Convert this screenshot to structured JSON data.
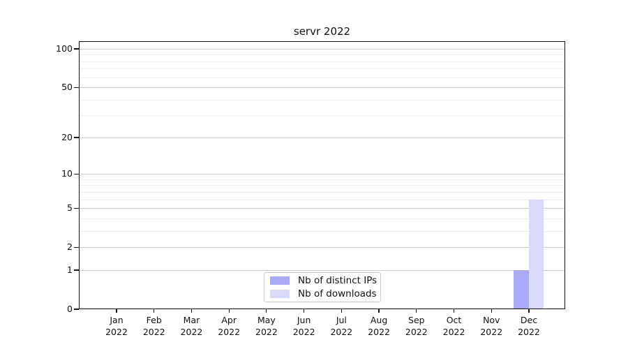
{
  "chart_data": {
    "type": "bar",
    "title": "servr 2022",
    "year": "2022",
    "months": [
      "Jan",
      "Feb",
      "Mar",
      "Apr",
      "May",
      "Jun",
      "Jul",
      "Aug",
      "Sep",
      "Oct",
      "Nov",
      "Dec"
    ],
    "categories": [
      "Jan 2022",
      "Feb 2022",
      "Mar 2022",
      "Apr 2022",
      "May 2022",
      "Jun 2022",
      "Jul 2022",
      "Aug 2022",
      "Sep 2022",
      "Oct 2022",
      "Nov 2022",
      "Dec 2022"
    ],
    "series": [
      {
        "name": "Nb of distinct IPs",
        "color": "#a9a9f8",
        "values": [
          0,
          0,
          0,
          0,
          0,
          0,
          0,
          0,
          0,
          0,
          0,
          1
        ]
      },
      {
        "name": "Nb of downloads",
        "color": "#d9d9fa",
        "values": [
          0,
          0,
          0,
          0,
          0,
          0,
          0,
          0,
          0,
          0,
          0,
          6
        ]
      }
    ],
    "y_axis": {
      "scale": "log1p",
      "tick_labels": [
        "0",
        "1",
        "2",
        "5",
        "10",
        "20",
        "50",
        "100"
      ],
      "tick_values": [
        0,
        1,
        2,
        5,
        10,
        20,
        50,
        100
      ],
      "minor_gridline_values": [
        3,
        4,
        6,
        7,
        8,
        9,
        30,
        40,
        60,
        70,
        80,
        90
      ],
      "ylim": [
        0,
        115
      ]
    },
    "legend": {
      "position": "inside-bottom-center",
      "entries": [
        "Nb of distinct IPs",
        "Nb of downloads"
      ]
    },
    "grid": {
      "horizontal": true,
      "major_color": "#cccccc",
      "minor_color": "#eeeeee"
    }
  }
}
